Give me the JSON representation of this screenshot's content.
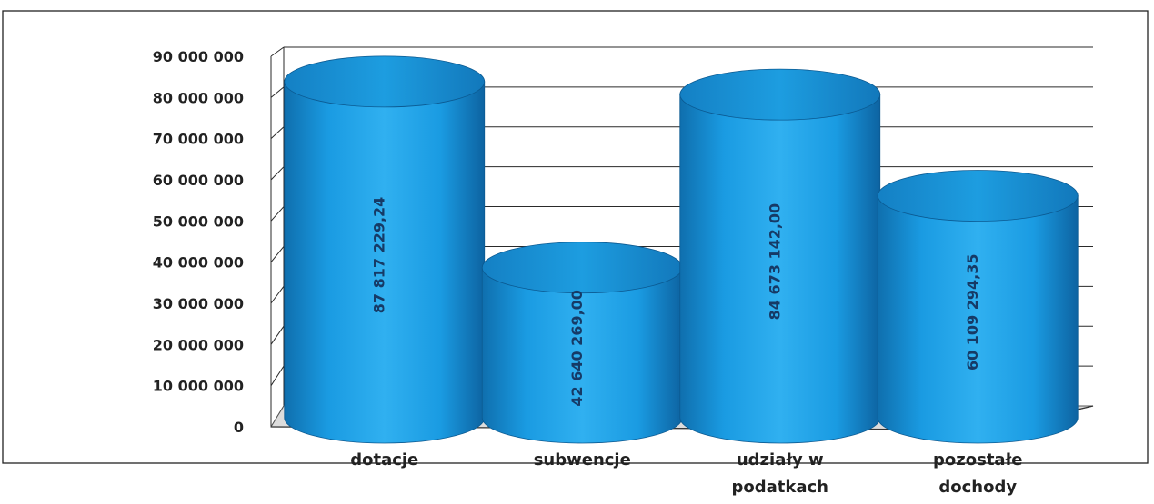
{
  "chart_data": {
    "type": "bar",
    "style": "3d-cylinder",
    "title": "",
    "xlabel": "",
    "ylabel": "",
    "categories": [
      [
        "dotacje"
      ],
      [
        "subwencje"
      ],
      [
        "udziały w",
        "podatkach"
      ],
      [
        "pozostałe",
        "dochody"
      ]
    ],
    "values": [
      87817229.24,
      42640269.0,
      84673142.0,
      60109294.35
    ],
    "value_labels": [
      "87 817 229,24",
      "42 640 269,00",
      "84 673 142,00",
      "60 109 294,35"
    ],
    "ylim": [
      0,
      90000000
    ],
    "yticks": [
      0,
      10000000,
      20000000,
      30000000,
      40000000,
      50000000,
      60000000,
      70000000,
      80000000,
      90000000
    ],
    "ytick_labels": [
      "0",
      "10 000 000",
      "20 000 000",
      "30 000 000",
      "40 000 000",
      "50 000 000",
      "60 000 000",
      "70 000 000",
      "80 000 000",
      "90 000 000"
    ],
    "grid": true,
    "legend": "none",
    "bar_color": "#1a9ae0",
    "label_color": "#163a66"
  }
}
